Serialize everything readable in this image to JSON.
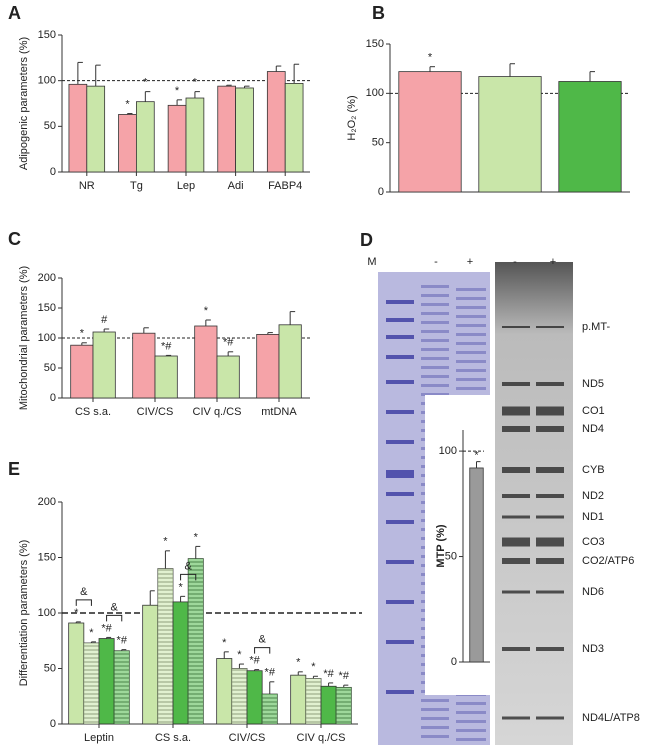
{
  "chart_data": [
    {
      "type": "bar",
      "panel": "A",
      "ylabel": "Adipogenic parameters (%)",
      "categories": [
        "NR",
        "Tg",
        "Lep",
        "Adi",
        "FABP4"
      ],
      "ylim": [
        0,
        150
      ],
      "yticks": [
        0,
        50,
        100,
        150
      ],
      "refline": 100,
      "series": [
        {
          "color": "#f5a3a8",
          "values": [
            96,
            63,
            73,
            94,
            110
          ],
          "errors": [
            24,
            1,
            6,
            1,
            6
          ],
          "annotations": [
            null,
            "*",
            "*",
            null,
            null
          ]
        },
        {
          "color": "#c9e6a9",
          "values": [
            94,
            77,
            81,
            92,
            97
          ],
          "errors": [
            23,
            11,
            7,
            2,
            21
          ],
          "annotations": [
            null,
            "*",
            "*",
            null,
            null
          ]
        }
      ]
    },
    {
      "type": "bar",
      "panel": "B",
      "ylabel": "H₂O₂ (%)",
      "categories": [
        null,
        null,
        null
      ],
      "ylim": [
        0,
        150
      ],
      "yticks": [
        0,
        50,
        100,
        150
      ],
      "refline": 100,
      "series": [
        {
          "colors": [
            "#f5a3a8",
            "#c9e6a9",
            "#4fb848"
          ],
          "values": [
            122,
            117,
            112
          ],
          "errors": [
            5,
            13,
            10
          ],
          "annotations": [
            "*",
            null,
            null
          ]
        }
      ]
    },
    {
      "type": "bar",
      "panel": "C",
      "ylabel": "Mitochondrial parameters (%)",
      "categories": [
        "CS s.a.",
        "CIV/CS",
        "CIV q./CS",
        "mtDNA"
      ],
      "ylim": [
        0,
        200
      ],
      "yticks": [
        0,
        50,
        100,
        150,
        200
      ],
      "refline": 100,
      "series": [
        {
          "color": "#f5a3a8",
          "values": [
            88,
            108,
            120,
            106
          ],
          "errors": [
            4,
            9,
            10,
            3
          ],
          "annotations": [
            "*",
            null,
            "*",
            null
          ]
        },
        {
          "color": "#c9e6a9",
          "values": [
            110,
            70,
            70,
            122
          ],
          "errors": [
            5,
            1,
            7,
            22
          ],
          "annotations": [
            "#",
            "*#",
            "*#",
            null
          ]
        }
      ]
    },
    {
      "type": "bar",
      "panel": "E",
      "ylabel": "Differentiation parameters (%)",
      "categories": [
        "Leptin",
        "CS s.a.",
        "CIV/CS",
        "CIV q./CS"
      ],
      "ylim": [
        0,
        200
      ],
      "yticks": [
        0,
        50,
        100,
        150,
        200
      ],
      "refline": 100,
      "series": [
        {
          "color": "#c9e6a9",
          "hatch": false,
          "values": [
            91,
            107,
            59,
            44
          ],
          "errors": [
            1,
            13,
            6,
            3
          ],
          "annotations": [
            "*",
            null,
            "*",
            "*"
          ]
        },
        {
          "color": "#c9e6a9",
          "hatch": true,
          "values": [
            73,
            140,
            50,
            41
          ],
          "errors": [
            1,
            16,
            4,
            2
          ],
          "annotations": [
            "*",
            "*",
            "*",
            "*"
          ]
        },
        {
          "color": "#4fb848",
          "hatch": false,
          "values": [
            77,
            110,
            48,
            34
          ],
          "errors": [
            1,
            5,
            1,
            3
          ],
          "annotations": [
            "*#",
            "*",
            "*#",
            "*#"
          ]
        },
        {
          "color": "#4fb848",
          "hatch": true,
          "values": [
            66,
            149,
            27,
            33
          ],
          "errors": [
            1,
            11,
            11,
            2
          ],
          "annotations": [
            "*#",
            "*",
            "*#",
            "*#"
          ]
        }
      ],
      "brackets": [
        {
          "category": 0,
          "from": 0,
          "to": 1,
          "text": "&"
        },
        {
          "category": 0,
          "from": 2,
          "to": 3,
          "text": "&"
        },
        {
          "category": 1,
          "from": 2,
          "to": 3,
          "text": "&"
        },
        {
          "category": 2,
          "from": 2,
          "to": 3,
          "text": "&"
        }
      ]
    },
    {
      "type": "bar",
      "ylabel": "MTP (%)",
      "categories": [
        null
      ],
      "ylim": [
        0,
        110
      ],
      "yticks": [
        0,
        50,
        100
      ],
      "refline": 100,
      "series": [
        {
          "color": "#9a9a9a",
          "values": [
            92
          ],
          "errors": [
            3
          ],
          "annotations": [
            "*"
          ]
        }
      ]
    }
  ],
  "gel": {
    "panel": "D",
    "lanes": [
      "M",
      "-",
      "+",
      "-",
      "+"
    ],
    "bands": [
      "p.MT-",
      "ND5",
      "CO1",
      "ND4",
      "CYB",
      "ND2",
      "ND1",
      "CO3",
      "CO2/ATP6",
      "ND6",
      "ND3",
      "ND4L/ATP8"
    ]
  }
}
